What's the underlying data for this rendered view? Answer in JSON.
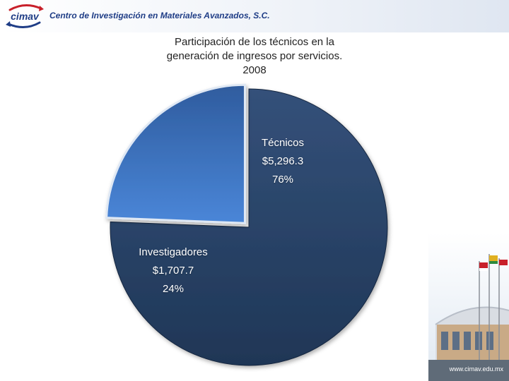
{
  "header": {
    "org_name": "Centro de Investigación en Materiales Avanzados, S.C.",
    "logo_text": "cimav",
    "website": "www.cimav.edu.mx"
  },
  "chart_data": {
    "type": "pie",
    "title_lines": [
      "Participación de los  técnicos en la",
      "generación de ingresos por servicios.",
      "2008"
    ],
    "slices": [
      {
        "label": "Técnicos",
        "value": 5296.3,
        "value_label": "$5,296.3",
        "percent_label": "76%",
        "color": "#2a4466"
      },
      {
        "label": "Investigadores",
        "value": 1707.7,
        "value_label": "$1,707.7",
        "percent_label": "24%",
        "color": "#3a6fc0"
      }
    ]
  },
  "colors": {
    "brand_blue": "#1f3d86",
    "logo_red": "#c8202a"
  }
}
